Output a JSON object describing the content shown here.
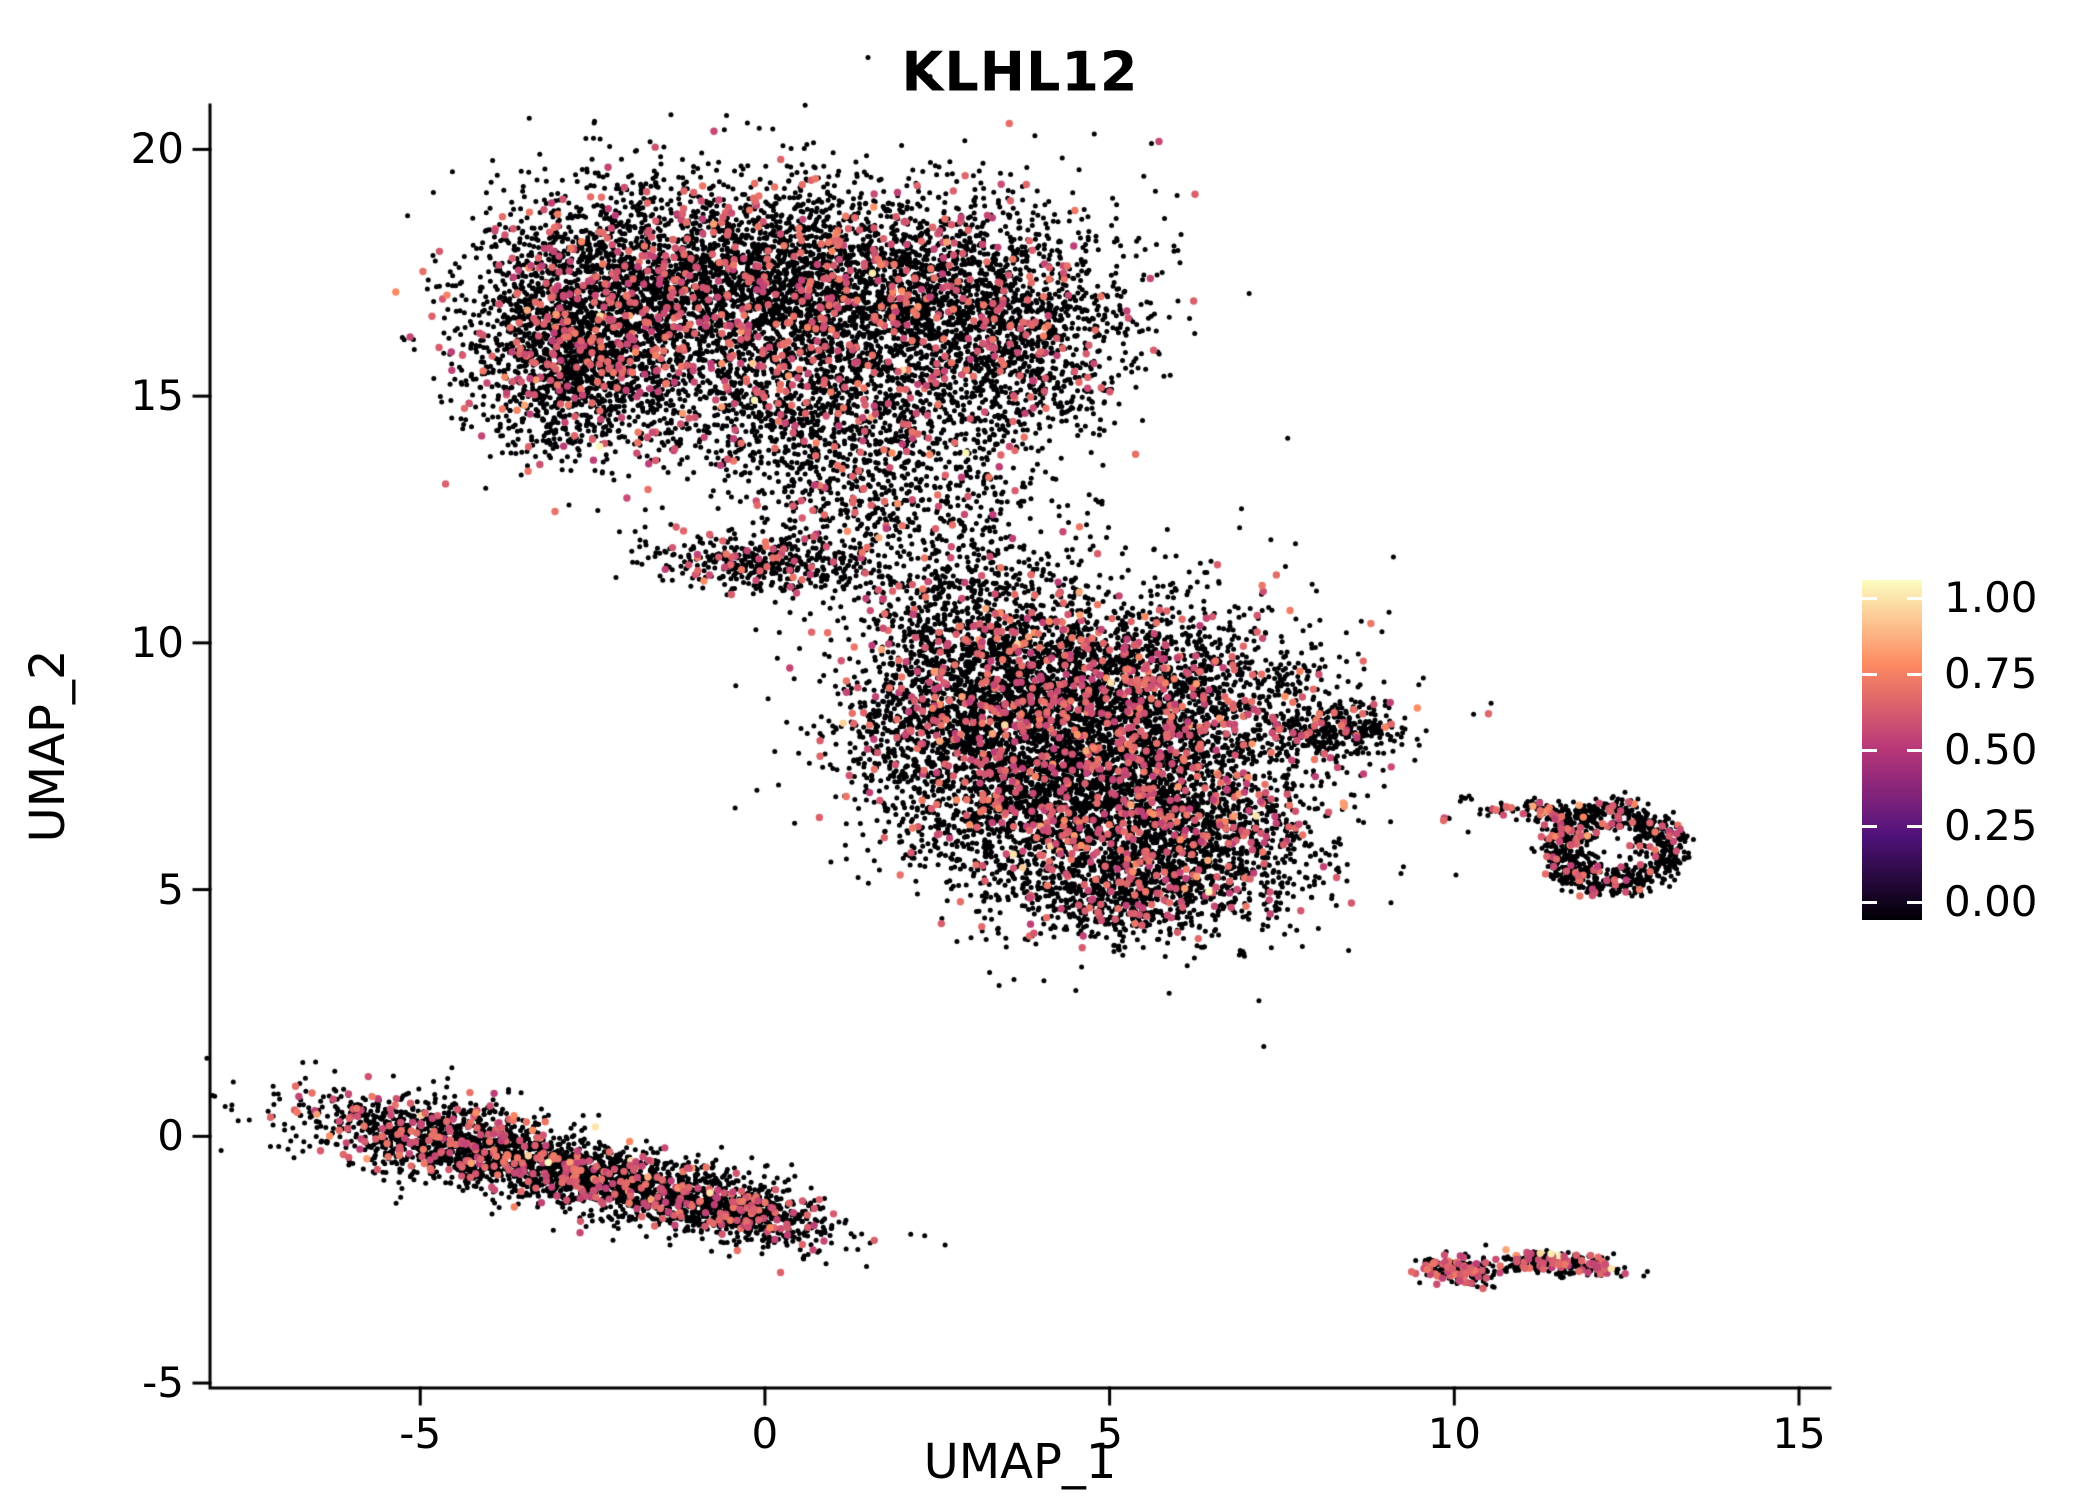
{
  "title": "KLHL12",
  "chart_data": {
    "type": "scatter",
    "title": "KLHL12",
    "xlabel": "UMAP_1",
    "ylabel": "UMAP_2",
    "xlim": [
      -8.05,
      15.45
    ],
    "ylim": [
      -5.1,
      20.9
    ],
    "xticks": {
      "values": [
        -5,
        0,
        5,
        10,
        15
      ],
      "labels": [
        "-5",
        "0",
        "5",
        "10",
        "15"
      ]
    },
    "yticks": {
      "values": [
        -5,
        0,
        5,
        10,
        15,
        20
      ],
      "labels": [
        "-5",
        "0",
        "5",
        "10",
        "15",
        "20"
      ]
    },
    "grid": false,
    "background": "#ffffff",
    "axis_color": "#000000",
    "legend_position": "right",
    "colorbar": {
      "orientation": "vertical",
      "tick_values": [
        1.0,
        0.75,
        0.5,
        0.25,
        0.0
      ],
      "tick_labels": [
        "1.00",
        "0.75",
        "0.50",
        "0.25",
        "0.00"
      ],
      "stops": [
        {
          "pos": 0.0,
          "color": "#000004"
        },
        {
          "pos": 0.25,
          "color": "#51127c"
        },
        {
          "pos": 0.5,
          "color": "#b73779"
        },
        {
          "pos": 0.75,
          "color": "#fc8961"
        },
        {
          "pos": 1.0,
          "color": "#fcfdbf"
        }
      ]
    },
    "point_style": {
      "radius_nonexpressing_px": 2.5,
      "radius_expressing_px": 3.7
    },
    "clusters": [
      {
        "name": "top-blob-left",
        "cx": -2.3,
        "cy": 16.7,
        "sx": 1.05,
        "sy": 1.25,
        "rot": 0,
        "n": 2400,
        "expr_frac": 0.11
      },
      {
        "name": "top-blob-midleft",
        "cx": -0.2,
        "cy": 17.3,
        "sx": 1.2,
        "sy": 1.05,
        "rot": 0,
        "n": 1900,
        "expr_frac": 0.1
      },
      {
        "name": "top-blob-midright",
        "cx": 1.8,
        "cy": 17.0,
        "sx": 1.2,
        "sy": 1.1,
        "rot": 0,
        "n": 1700,
        "expr_frac": 0.09
      },
      {
        "name": "top-blob-right",
        "cx": 3.6,
        "cy": 16.4,
        "sx": 1.0,
        "sy": 1.2,
        "rot": 0,
        "n": 1300,
        "expr_frac": 0.09
      },
      {
        "name": "top-blob-left-low",
        "cx": -3.0,
        "cy": 15.3,
        "sx": 0.6,
        "sy": 0.7,
        "rot": 0,
        "n": 500,
        "expr_frac": 0.12
      },
      {
        "name": "top-blob-bottom",
        "cx": 0.6,
        "cy": 14.6,
        "sx": 1.3,
        "sy": 0.8,
        "rot": 0,
        "n": 900,
        "expr_frac": 0.1
      },
      {
        "name": "neck",
        "cx": 1.5,
        "cy": 13.1,
        "sx": 0.85,
        "sy": 0.9,
        "rot": 0,
        "n": 450,
        "expr_frac": 0.08
      },
      {
        "name": "strip",
        "cx": -0.1,
        "cy": 11.6,
        "sx": 0.78,
        "sy": 0.28,
        "rot": -6,
        "n": 430,
        "expr_frac": 0.12
      },
      {
        "name": "bridge",
        "cx": 2.7,
        "cy": 12.1,
        "sx": 0.95,
        "sy": 1.05,
        "rot": 0,
        "n": 300,
        "expr_frac": 0.07
      },
      {
        "name": "bridge-low",
        "cx": 2.6,
        "cy": 10.7,
        "sx": 0.5,
        "sy": 0.55,
        "rot": 0,
        "n": 150,
        "expr_frac": 0.07
      },
      {
        "name": "mid-blob-nw",
        "cx": 3.6,
        "cy": 9.3,
        "sx": 1.2,
        "sy": 1.05,
        "rot": 0,
        "n": 1800,
        "expr_frac": 0.13
      },
      {
        "name": "mid-blob-ne",
        "cx": 5.6,
        "cy": 8.6,
        "sx": 1.3,
        "sy": 1.15,
        "rot": 0,
        "n": 2300,
        "expr_frac": 0.13
      },
      {
        "name": "mid-blob-sw",
        "cx": 4.3,
        "cy": 6.6,
        "sx": 1.15,
        "sy": 1.0,
        "rot": 0,
        "n": 1900,
        "expr_frac": 0.12
      },
      {
        "name": "mid-blob-se",
        "cx": 6.3,
        "cy": 5.9,
        "sx": 1.0,
        "sy": 0.85,
        "rot": 0,
        "n": 1100,
        "expr_frac": 0.11
      },
      {
        "name": "mid-blob-w",
        "cx": 2.6,
        "cy": 8.0,
        "sx": 0.8,
        "sy": 0.95,
        "rot": 0,
        "n": 750,
        "expr_frac": 0.12
      },
      {
        "name": "mid-tip",
        "cx": 8.2,
        "cy": 8.2,
        "sx": 0.55,
        "sy": 0.3,
        "rot": 3,
        "n": 320,
        "expr_frac": 0.08
      },
      {
        "name": "mid-tip-end",
        "cx": 8.85,
        "cy": 8.25,
        "sx": 0.1,
        "sy": 0.07,
        "rot": 0,
        "n": 18,
        "expr_frac": 0.05
      },
      {
        "name": "mid-bottom",
        "cx": 5.2,
        "cy": 4.9,
        "sx": 0.9,
        "sy": 0.5,
        "rot": 0,
        "n": 500,
        "expr_frac": 0.1
      },
      {
        "name": "mid-outlier",
        "cx": 5.1,
        "cy": 3.8,
        "sx": 0.07,
        "sy": 0.06,
        "rot": 0,
        "n": 8,
        "expr_frac": 0.0
      },
      {
        "name": "ring",
        "shape": "ring",
        "cx": 12.3,
        "cy": 5.85,
        "rmin": 0.33,
        "rmax": 0.95,
        "jitter": 0.09,
        "xstretch": 1.1,
        "rot": 0,
        "n": 850,
        "expr_frac": 0.1
      },
      {
        "name": "ring-sat-1",
        "cx": 11.45,
        "cy": 6.5,
        "sx": 0.28,
        "sy": 0.13,
        "rot": -20,
        "n": 110,
        "expr_frac": 0.15
      },
      {
        "name": "ring-sat-2",
        "cx": 10.6,
        "cy": 6.62,
        "sx": 0.13,
        "sy": 0.07,
        "rot": 0,
        "n": 22,
        "expr_frac": 0.2
      },
      {
        "name": "ring-sat-3",
        "cx": 9.9,
        "cy": 6.45,
        "sx": 0.05,
        "sy": 0.04,
        "rot": 0,
        "n": 5,
        "expr_frac": 0.3
      },
      {
        "name": "band-left",
        "cx": -4.5,
        "cy": -0.15,
        "sx": 1.2,
        "sy": 0.4,
        "rot": -17,
        "n": 1350,
        "expr_frac": 0.13
      },
      {
        "name": "band-right",
        "cx": -1.8,
        "cy": -1.05,
        "sx": 1.3,
        "sy": 0.38,
        "rot": -17,
        "n": 1350,
        "expr_frac": 0.13
      },
      {
        "name": "band-tail",
        "cx": -0.15,
        "cy": -1.6,
        "sx": 0.5,
        "sy": 0.24,
        "rot": -15,
        "n": 330,
        "expr_frac": 0.14
      },
      {
        "name": "br-blob-1",
        "cx": 10.05,
        "cy": -2.72,
        "sx": 0.27,
        "sy": 0.13,
        "rot": -8,
        "n": 200,
        "expr_frac": 0.3
      },
      {
        "name": "br-blob-2",
        "cx": 11.55,
        "cy": -2.58,
        "sx": 0.42,
        "sy": 0.11,
        "rot": -6,
        "n": 240,
        "expr_frac": 0.3
      },
      {
        "name": "br-blob-mid",
        "cx": 10.95,
        "cy": -2.65,
        "sx": 0.07,
        "sy": 0.05,
        "rot": 0,
        "n": 10,
        "expr_frac": 0.2
      },
      {
        "name": "speck-1",
        "cx": 6.9,
        "cy": 3.7,
        "sx": 0.05,
        "sy": 0.05,
        "rot": 0,
        "n": 5,
        "expr_frac": 0.0
      },
      {
        "name": "speck-2",
        "cx": 10.15,
        "cy": 6.85,
        "sx": 0.06,
        "sy": 0.05,
        "rot": 0,
        "n": 6,
        "expr_frac": 0.2
      }
    ]
  }
}
